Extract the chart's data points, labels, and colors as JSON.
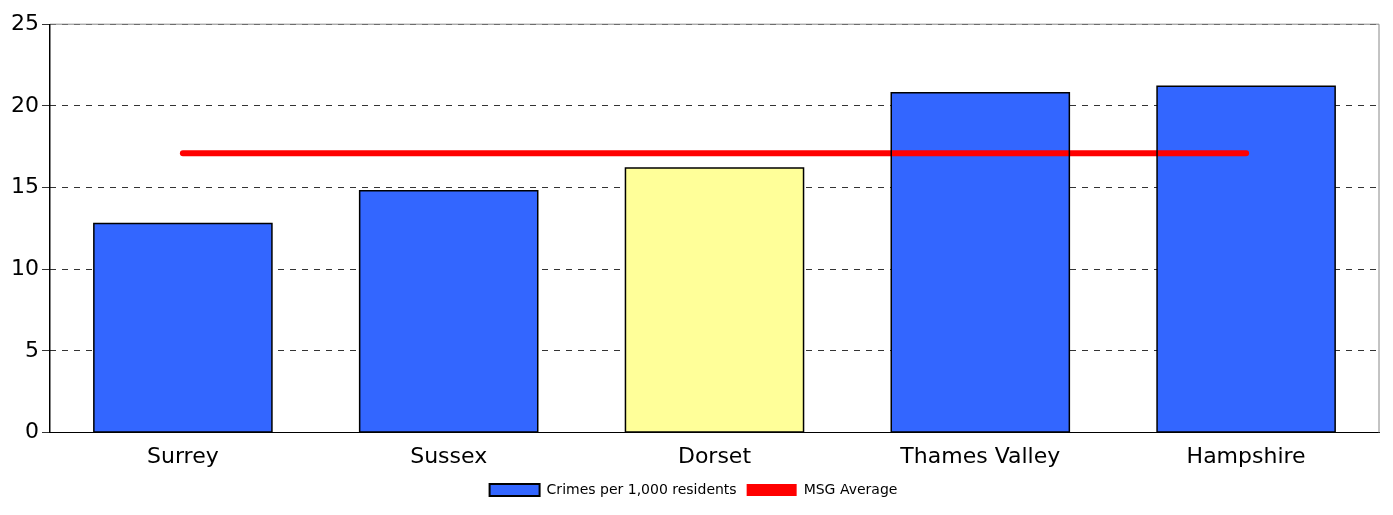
{
  "chart_data": {
    "type": "bar",
    "categories": [
      "Surrey",
      "Sussex",
      "Dorset",
      "Thames Valley",
      "Hampshire"
    ],
    "series": [
      {
        "name": "Crimes per 1,000 residents",
        "color": "#3366ff",
        "colors": [
          "#3366ff",
          "#3366ff",
          "#ffff99",
          "#3366ff",
          "#3366ff"
        ],
        "values": [
          12.8,
          14.8,
          16.2,
          20.8,
          21.2
        ]
      },
      {
        "name": "MSG Average",
        "type": "line",
        "color": "#ff0000",
        "values": [
          17.1,
          17.1,
          17.1,
          17.1,
          17.1
        ]
      }
    ],
    "ylim": [
      0,
      25
    ],
    "yticks": [
      0,
      5,
      10,
      15,
      20,
      25
    ],
    "grid": "y",
    "legend": "bottom",
    "marker": "none",
    "line_style": "solid"
  }
}
